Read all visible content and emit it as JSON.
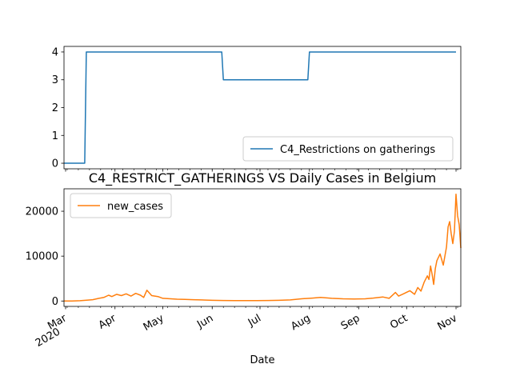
{
  "figure": {
    "title": "C4_RESTRICT_GATHERINGS VS Daily Cases in Belgium",
    "xlabel": "Date"
  },
  "chart_data": [
    {
      "type": "line",
      "series": [
        {
          "name": "C4_Restrictions on gatherings",
          "color": "#1f77b4",
          "points": [
            [
              "2020-02-29",
              0
            ],
            [
              "2020-03-13",
              0
            ],
            [
              "2020-03-14",
              4
            ],
            [
              "2020-06-07",
              4
            ],
            [
              "2020-06-08",
              3
            ],
            [
              "2020-07-31",
              3
            ],
            [
              "2020-08-01",
              4
            ],
            [
              "2020-11-01",
              4
            ]
          ]
        }
      ],
      "ylim": [
        -0.2,
        4.2
      ],
      "yticks": [
        0,
        1,
        2,
        3,
        4
      ],
      "legend": "lower-right",
      "grid": false
    },
    {
      "type": "line",
      "series": [
        {
          "name": "new_cases",
          "color": "#ff7f0e",
          "points": [
            [
              "2020-02-29",
              0
            ],
            [
              "2020-03-05",
              20
            ],
            [
              "2020-03-10",
              60
            ],
            [
              "2020-03-15",
              200
            ],
            [
              "2020-03-18",
              300
            ],
            [
              "2020-03-22",
              600
            ],
            [
              "2020-03-25",
              800
            ],
            [
              "2020-03-28",
              1300
            ],
            [
              "2020-03-30",
              1000
            ],
            [
              "2020-04-02",
              1500
            ],
            [
              "2020-04-05",
              1200
            ],
            [
              "2020-04-08",
              1600
            ],
            [
              "2020-04-11",
              1100
            ],
            [
              "2020-04-14",
              1700
            ],
            [
              "2020-04-17",
              1300
            ],
            [
              "2020-04-19",
              800
            ],
            [
              "2020-04-21",
              2400
            ],
            [
              "2020-04-24",
              1200
            ],
            [
              "2020-04-28",
              1000
            ],
            [
              "2020-05-01",
              600
            ],
            [
              "2020-05-06",
              500
            ],
            [
              "2020-05-10",
              400
            ],
            [
              "2020-05-15",
              350
            ],
            [
              "2020-05-20",
              300
            ],
            [
              "2020-05-25",
              250
            ],
            [
              "2020-06-01",
              150
            ],
            [
              "2020-06-08",
              120
            ],
            [
              "2020-06-15",
              100
            ],
            [
              "2020-06-22",
              90
            ],
            [
              "2020-06-29",
              100
            ],
            [
              "2020-07-06",
              110
            ],
            [
              "2020-07-13",
              150
            ],
            [
              "2020-07-20",
              250
            ],
            [
              "2020-07-27",
              500
            ],
            [
              "2020-08-03",
              650
            ],
            [
              "2020-08-08",
              800
            ],
            [
              "2020-08-15",
              600
            ],
            [
              "2020-08-22",
              500
            ],
            [
              "2020-08-29",
              450
            ],
            [
              "2020-09-05",
              500
            ],
            [
              "2020-09-10",
              650
            ],
            [
              "2020-09-16",
              900
            ],
            [
              "2020-09-20",
              600
            ],
            [
              "2020-09-24",
              1900
            ],
            [
              "2020-09-26",
              1100
            ],
            [
              "2020-09-29",
              1600
            ],
            [
              "2020-10-03",
              2300
            ],
            [
              "2020-10-06",
              1500
            ],
            [
              "2020-10-08",
              3000
            ],
            [
              "2020-10-10",
              2200
            ],
            [
              "2020-10-12",
              4200
            ],
            [
              "2020-10-14",
              5600
            ],
            [
              "2020-10-15",
              4800
            ],
            [
              "2020-10-16",
              7800
            ],
            [
              "2020-10-17",
              6000
            ],
            [
              "2020-10-18",
              3700
            ],
            [
              "2020-10-19",
              7200
            ],
            [
              "2020-10-20",
              9000
            ],
            [
              "2020-10-22",
              10500
            ],
            [
              "2020-10-24",
              8000
            ],
            [
              "2020-10-26",
              12000
            ],
            [
              "2020-10-27",
              16500
            ],
            [
              "2020-10-28",
              17700
            ],
            [
              "2020-10-29",
              15000
            ],
            [
              "2020-10-30",
              12800
            ],
            [
              "2020-10-31",
              15500
            ],
            [
              "2020-11-01",
              23800
            ],
            [
              "2020-11-02",
              19000
            ],
            [
              "2020-11-03",
              17000
            ],
            [
              "2020-11-04",
              11800
            ]
          ]
        }
      ],
      "ylim": [
        -1200,
        25000
      ],
      "yticks": [
        0,
        10000,
        20000
      ],
      "legend": "upper-left",
      "grid": false
    }
  ],
  "xaxis": {
    "xlim": [
      "2020-02-29",
      "2020-11-04"
    ],
    "major_ticks": [
      {
        "date": "2020-03-01",
        "label": "Mar"
      },
      {
        "date": "2020-04-01",
        "label": "Apr"
      },
      {
        "date": "2020-05-01",
        "label": "May"
      },
      {
        "date": "2020-06-01",
        "label": "Jun"
      },
      {
        "date": "2020-07-01",
        "label": "Jul"
      },
      {
        "date": "2020-08-01",
        "label": "Aug"
      },
      {
        "date": "2020-09-01",
        "label": "Sep"
      },
      {
        "date": "2020-10-01",
        "label": "Oct"
      },
      {
        "date": "2020-11-01",
        "label": "Nov"
      }
    ],
    "year_label": "2020"
  }
}
